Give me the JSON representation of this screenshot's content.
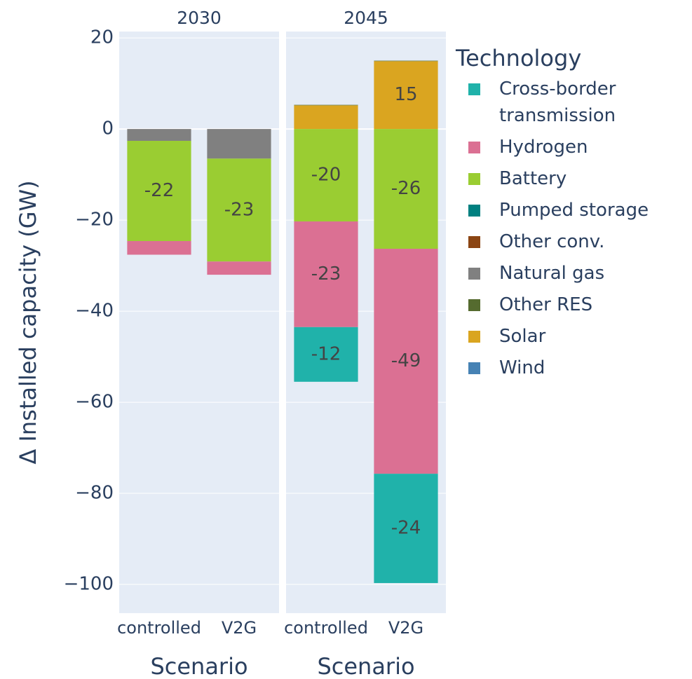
{
  "chart_data": [
    {
      "type": "bar",
      "title": "2030",
      "y_label": "Δ Installed capacity (GW)",
      "x_label": "Scenario",
      "legend_title": "Technology",
      "categories": [
        "controlled",
        "V2G"
      ],
      "ylim": [
        -106.3,
        21.4
      ],
      "yticks": [
        {
          "value": 20,
          "label": "20"
        },
        {
          "value": 0,
          "label": "0"
        },
        {
          "value": -20,
          "label": "−20"
        },
        {
          "value": -40,
          "label": "−40"
        },
        {
          "value": -60,
          "label": "−60"
        },
        {
          "value": -80,
          "label": "−80"
        },
        {
          "value": -100,
          "label": "−100"
        }
      ],
      "series": [
        {
          "name": "Cross-border transmission",
          "color": "#20b2aa",
          "values": [
            0,
            0
          ],
          "value_labels": [
            null,
            null
          ]
        },
        {
          "name": "Hydrogen",
          "color": "#db7093",
          "values": [
            -3,
            -2.9
          ],
          "value_labels": [
            null,
            null
          ]
        },
        {
          "name": "Battery",
          "color": "#9acd32",
          "values": [
            -22,
            -22.6
          ],
          "value_labels": [
            "-22",
            "-23"
          ]
        },
        {
          "name": "Pumped storage",
          "color": "#008080",
          "values": [
            0,
            0
          ],
          "value_labels": [
            null,
            null
          ]
        },
        {
          "name": "Other conv.",
          "color": "#8b4513",
          "values": [
            0,
            0
          ],
          "value_labels": [
            null,
            null
          ]
        },
        {
          "name": "Natural gas",
          "color": "#808080",
          "values": [
            -2.6,
            -6.5
          ],
          "value_labels": [
            null,
            null
          ]
        },
        {
          "name": "Other RES",
          "color": "#556b2f",
          "values": [
            0,
            0
          ],
          "value_labels": [
            null,
            null
          ]
        },
        {
          "name": "Solar",
          "color": "#daa520",
          "values": [
            0,
            0
          ],
          "value_labels": [
            null,
            null
          ]
        },
        {
          "name": "Wind",
          "color": "#4682b4",
          "values": [
            0,
            0
          ],
          "value_labels": [
            null,
            null
          ]
        }
      ]
    },
    {
      "type": "bar",
      "title": "2045",
      "x_label": "Scenario",
      "categories": [
        "controlled",
        "V2G"
      ],
      "ylim": [
        -106.3,
        21.4
      ],
      "series": [
        {
          "name": "Cross-border transmission",
          "color": "#20b2aa",
          "values": [
            -12,
            -24
          ],
          "value_labels": [
            "-12",
            "-24"
          ]
        },
        {
          "name": "Hydrogen",
          "color": "#db7093",
          "values": [
            -23.2,
            -49.4
          ],
          "value_labels": [
            "-23",
            "-49"
          ]
        },
        {
          "name": "Battery",
          "color": "#9acd32",
          "values": [
            -20.3,
            -26.3
          ],
          "value_labels": [
            "-20",
            "-26"
          ]
        },
        {
          "name": "Pumped storage",
          "color": "#008080",
          "values": [
            0,
            0
          ],
          "value_labels": [
            null,
            null
          ]
        },
        {
          "name": "Other conv.",
          "color": "#8b4513",
          "values": [
            0,
            0
          ],
          "value_labels": [
            null,
            null
          ]
        },
        {
          "name": "Natural gas",
          "color": "#808080",
          "values": [
            0,
            0
          ],
          "value_labels": [
            null,
            null
          ]
        },
        {
          "name": "Other RES",
          "color": "#556b2f",
          "values": [
            0.1,
            0.1
          ],
          "value_labels": [
            null,
            null
          ]
        },
        {
          "name": "Solar",
          "color": "#daa520",
          "values": [
            5.2,
            14.9
          ],
          "value_labels": [
            null,
            "15"
          ]
        },
        {
          "name": "Wind",
          "color": "#4682b4",
          "values": [
            0,
            0
          ],
          "value_labels": [
            null,
            null
          ]
        }
      ]
    }
  ]
}
